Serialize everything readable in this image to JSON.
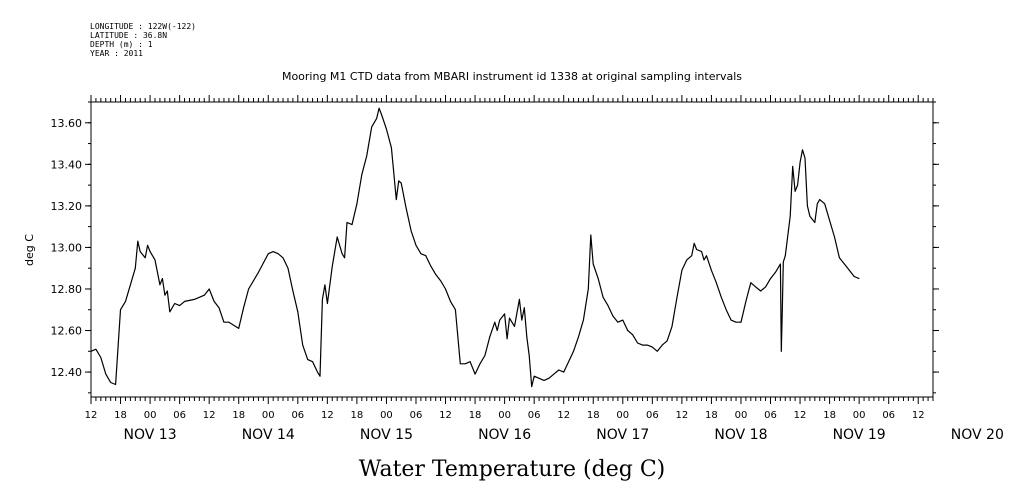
{
  "meta": {
    "longitude": "LONGITUDE : 122W(-122)",
    "latitude": "LATITUDE : 36.8N",
    "depth": "DEPTH (m) : 1",
    "year": "YEAR : 2011"
  },
  "chart_data": {
    "type": "line",
    "title": "Mooring M1 CTD data from MBARI instrument id 1338 at original sampling intervals",
    "xlabel": "Water Temperature (deg C)",
    "ylabel": "deg C",
    "ylim": [
      12.28,
      13.7
    ],
    "xlim": [
      0,
      171
    ],
    "yticks": [
      "12.40",
      "12.60",
      "12.80",
      "13.00",
      "13.20",
      "13.40",
      "13.60"
    ],
    "hour_ticks": [
      "12",
      "18",
      "00",
      "06",
      "12",
      "18",
      "00",
      "06",
      "12",
      "18",
      "00",
      "06",
      "12",
      "18",
      "00",
      "06",
      "12",
      "18",
      "00",
      "06",
      "12",
      "18",
      "00",
      "06",
      "12",
      "18",
      "00",
      "06",
      "12"
    ],
    "day_labels": [
      "NOV 13",
      "NOV 14",
      "NOV 15",
      "NOV 16",
      "NOV 17",
      "NOV 18",
      "NOV 19",
      "NOV 20"
    ],
    "x_units": "hours since 12:00 NOV 13",
    "series": [
      {
        "values": [
          [
            0,
            12.5
          ],
          [
            1,
            12.51
          ],
          [
            2,
            12.47
          ],
          [
            3,
            12.39
          ],
          [
            4,
            12.35
          ],
          [
            5,
            12.34
          ],
          [
            6,
            12.7
          ],
          [
            7,
            12.74
          ],
          [
            8,
            12.82
          ],
          [
            9,
            12.9
          ],
          [
            9.5,
            13.03
          ],
          [
            10,
            12.98
          ],
          [
            11,
            12.95
          ],
          [
            11.5,
            13.01
          ],
          [
            12,
            12.98
          ],
          [
            13,
            12.94
          ],
          [
            14,
            12.82
          ],
          [
            14.5,
            12.85
          ],
          [
            15,
            12.77
          ],
          [
            15.5,
            12.79
          ],
          [
            16,
            12.69
          ],
          [
            17,
            12.73
          ],
          [
            18,
            12.72
          ],
          [
            19,
            12.74
          ],
          [
            21,
            12.75
          ],
          [
            23,
            12.77
          ],
          [
            24,
            12.8
          ],
          [
            25,
            12.74
          ],
          [
            26,
            12.71
          ],
          [
            27,
            12.64
          ],
          [
            28,
            12.64
          ],
          [
            30,
            12.61
          ],
          [
            31,
            12.71
          ],
          [
            32,
            12.8
          ],
          [
            34,
            12.88
          ],
          [
            36,
            12.97
          ],
          [
            37,
            12.98
          ],
          [
            38,
            12.97
          ],
          [
            39,
            12.95
          ],
          [
            40,
            12.9
          ],
          [
            41,
            12.79
          ],
          [
            42,
            12.69
          ],
          [
            43,
            12.53
          ],
          [
            44,
            12.46
          ],
          [
            45,
            12.45
          ],
          [
            46,
            12.4
          ],
          [
            46.5,
            12.38
          ],
          [
            47,
            12.75
          ],
          [
            47.5,
            12.82
          ],
          [
            48,
            12.73
          ],
          [
            49,
            12.91
          ],
          [
            50,
            13.05
          ],
          [
            51,
            12.97
          ],
          [
            51.5,
            12.95
          ],
          [
            52,
            13.12
          ],
          [
            53,
            13.11
          ],
          [
            54,
            13.21
          ],
          [
            55,
            13.35
          ],
          [
            56,
            13.44
          ],
          [
            57,
            13.58
          ],
          [
            58,
            13.62
          ],
          [
            58.5,
            13.67
          ],
          [
            59,
            13.64
          ],
          [
            60,
            13.57
          ],
          [
            61,
            13.48
          ],
          [
            62,
            13.23
          ],
          [
            62.5,
            13.32
          ],
          [
            63,
            13.31
          ],
          [
            64,
            13.19
          ],
          [
            65,
            13.08
          ],
          [
            66,
            13.01
          ],
          [
            67,
            12.97
          ],
          [
            68,
            12.96
          ],
          [
            69,
            12.91
          ],
          [
            70,
            12.87
          ],
          [
            71,
            12.84
          ],
          [
            72,
            12.8
          ],
          [
            73,
            12.74
          ],
          [
            74,
            12.7
          ],
          [
            75,
            12.44
          ],
          [
            76,
            12.44
          ],
          [
            77,
            12.45
          ],
          [
            78,
            12.39
          ],
          [
            79,
            12.44
          ],
          [
            80,
            12.48
          ],
          [
            81,
            12.57
          ],
          [
            82,
            12.64
          ],
          [
            82.5,
            12.6
          ],
          [
            83,
            12.65
          ],
          [
            84,
            12.68
          ],
          [
            84.5,
            12.56
          ],
          [
            85,
            12.66
          ],
          [
            86,
            12.62
          ],
          [
            87,
            12.75
          ],
          [
            87.5,
            12.65
          ],
          [
            88,
            12.71
          ],
          [
            88.5,
            12.57
          ],
          [
            89,
            12.48
          ],
          [
            89.5,
            12.33
          ],
          [
            90,
            12.38
          ],
          [
            91,
            12.37
          ],
          [
            92,
            12.36
          ],
          [
            93,
            12.37
          ],
          [
            94,
            12.39
          ],
          [
            95,
            12.41
          ],
          [
            96,
            12.4
          ],
          [
            97,
            12.45
          ],
          [
            98,
            12.5
          ],
          [
            99,
            12.57
          ],
          [
            100,
            12.65
          ],
          [
            101,
            12.8
          ],
          [
            101.5,
            13.06
          ],
          [
            102,
            12.92
          ],
          [
            103,
            12.85
          ],
          [
            104,
            12.76
          ],
          [
            105,
            12.72
          ],
          [
            106,
            12.67
          ],
          [
            107,
            12.64
          ],
          [
            108,
            12.65
          ],
          [
            109,
            12.6
          ],
          [
            110,
            12.58
          ],
          [
            111,
            12.54
          ],
          [
            112,
            12.53
          ],
          [
            113,
            12.53
          ],
          [
            114,
            12.52
          ],
          [
            115,
            12.5
          ],
          [
            116,
            12.53
          ],
          [
            117,
            12.55
          ],
          [
            118,
            12.62
          ],
          [
            119,
            12.76
          ],
          [
            120,
            12.89
          ],
          [
            121,
            12.94
          ],
          [
            122,
            12.96
          ],
          [
            122.5,
            13.02
          ],
          [
            123,
            12.99
          ],
          [
            124,
            12.98
          ],
          [
            124.5,
            12.94
          ],
          [
            125,
            12.96
          ],
          [
            126,
            12.89
          ],
          [
            127,
            12.83
          ],
          [
            128,
            12.76
          ],
          [
            129,
            12.7
          ],
          [
            130,
            12.65
          ],
          [
            131,
            12.64
          ],
          [
            132,
            12.64
          ],
          [
            133,
            12.74
          ],
          [
            134,
            12.83
          ],
          [
            135,
            12.81
          ],
          [
            136,
            12.79
          ],
          [
            137,
            12.81
          ],
          [
            138,
            12.85
          ],
          [
            139,
            12.88
          ],
          [
            140,
            12.92
          ],
          [
            140.2,
            12.5
          ],
          [
            140.4,
            12.7
          ],
          [
            140.6,
            12.93
          ],
          [
            141,
            12.96
          ],
          [
            142,
            13.15
          ],
          [
            142.5,
            13.39
          ],
          [
            143,
            13.27
          ],
          [
            143.5,
            13.3
          ],
          [
            144,
            13.41
          ],
          [
            144.5,
            13.47
          ],
          [
            145,
            13.43
          ],
          [
            145.5,
            13.2
          ],
          [
            146,
            13.15
          ],
          [
            147,
            13.12
          ],
          [
            147.5,
            13.21
          ],
          [
            148,
            13.23
          ],
          [
            149,
            13.21
          ],
          [
            150,
            13.13
          ],
          [
            151,
            13.05
          ],
          [
            152,
            12.95
          ],
          [
            153,
            12.92
          ],
          [
            154,
            12.89
          ],
          [
            155,
            12.86
          ],
          [
            156,
            12.85
          ]
        ]
      }
    ]
  }
}
